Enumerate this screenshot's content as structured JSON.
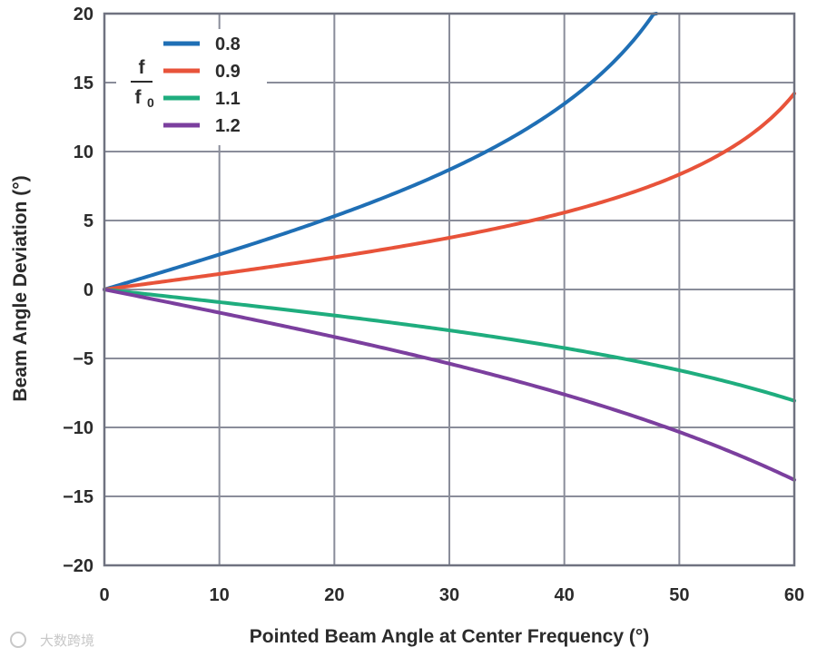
{
  "chart_data": {
    "type": "line",
    "title": "",
    "xlabel": "Pointed Beam Angle at Center Frequency (°)",
    "ylabel": "Beam Angle Deviation (°)",
    "xlim": [
      0,
      60
    ],
    "ylim": [
      -20,
      20
    ],
    "xticks": [
      0,
      10,
      20,
      30,
      40,
      50,
      60
    ],
    "yticks": [
      20,
      15,
      10,
      5,
      0,
      -5,
      -10,
      -15,
      -20
    ],
    "xtick_labels": [
      "0",
      "10",
      "20",
      "30",
      "40",
      "50",
      "60"
    ],
    "ytick_labels": [
      "20",
      "15",
      "10",
      "5",
      "0",
      "−5",
      "−10",
      "−15",
      "−20"
    ],
    "grid": true,
    "legend_title_num": "f",
    "legend_title_den": "f",
    "legend_title_den_sub": "0",
    "legend_position": "top-left",
    "series": [
      {
        "name": "0.8",
        "color": "#1f6fb5",
        "ratio": 0.8
      },
      {
        "name": "0.9",
        "color": "#e8533a",
        "ratio": 0.9
      },
      {
        "name": "1.1",
        "color": "#1fad7e",
        "ratio": 1.1
      },
      {
        "name": "1.2",
        "color": "#7b3f9e",
        "ratio": 1.2
      }
    ]
  },
  "watermark": "大数跨境"
}
